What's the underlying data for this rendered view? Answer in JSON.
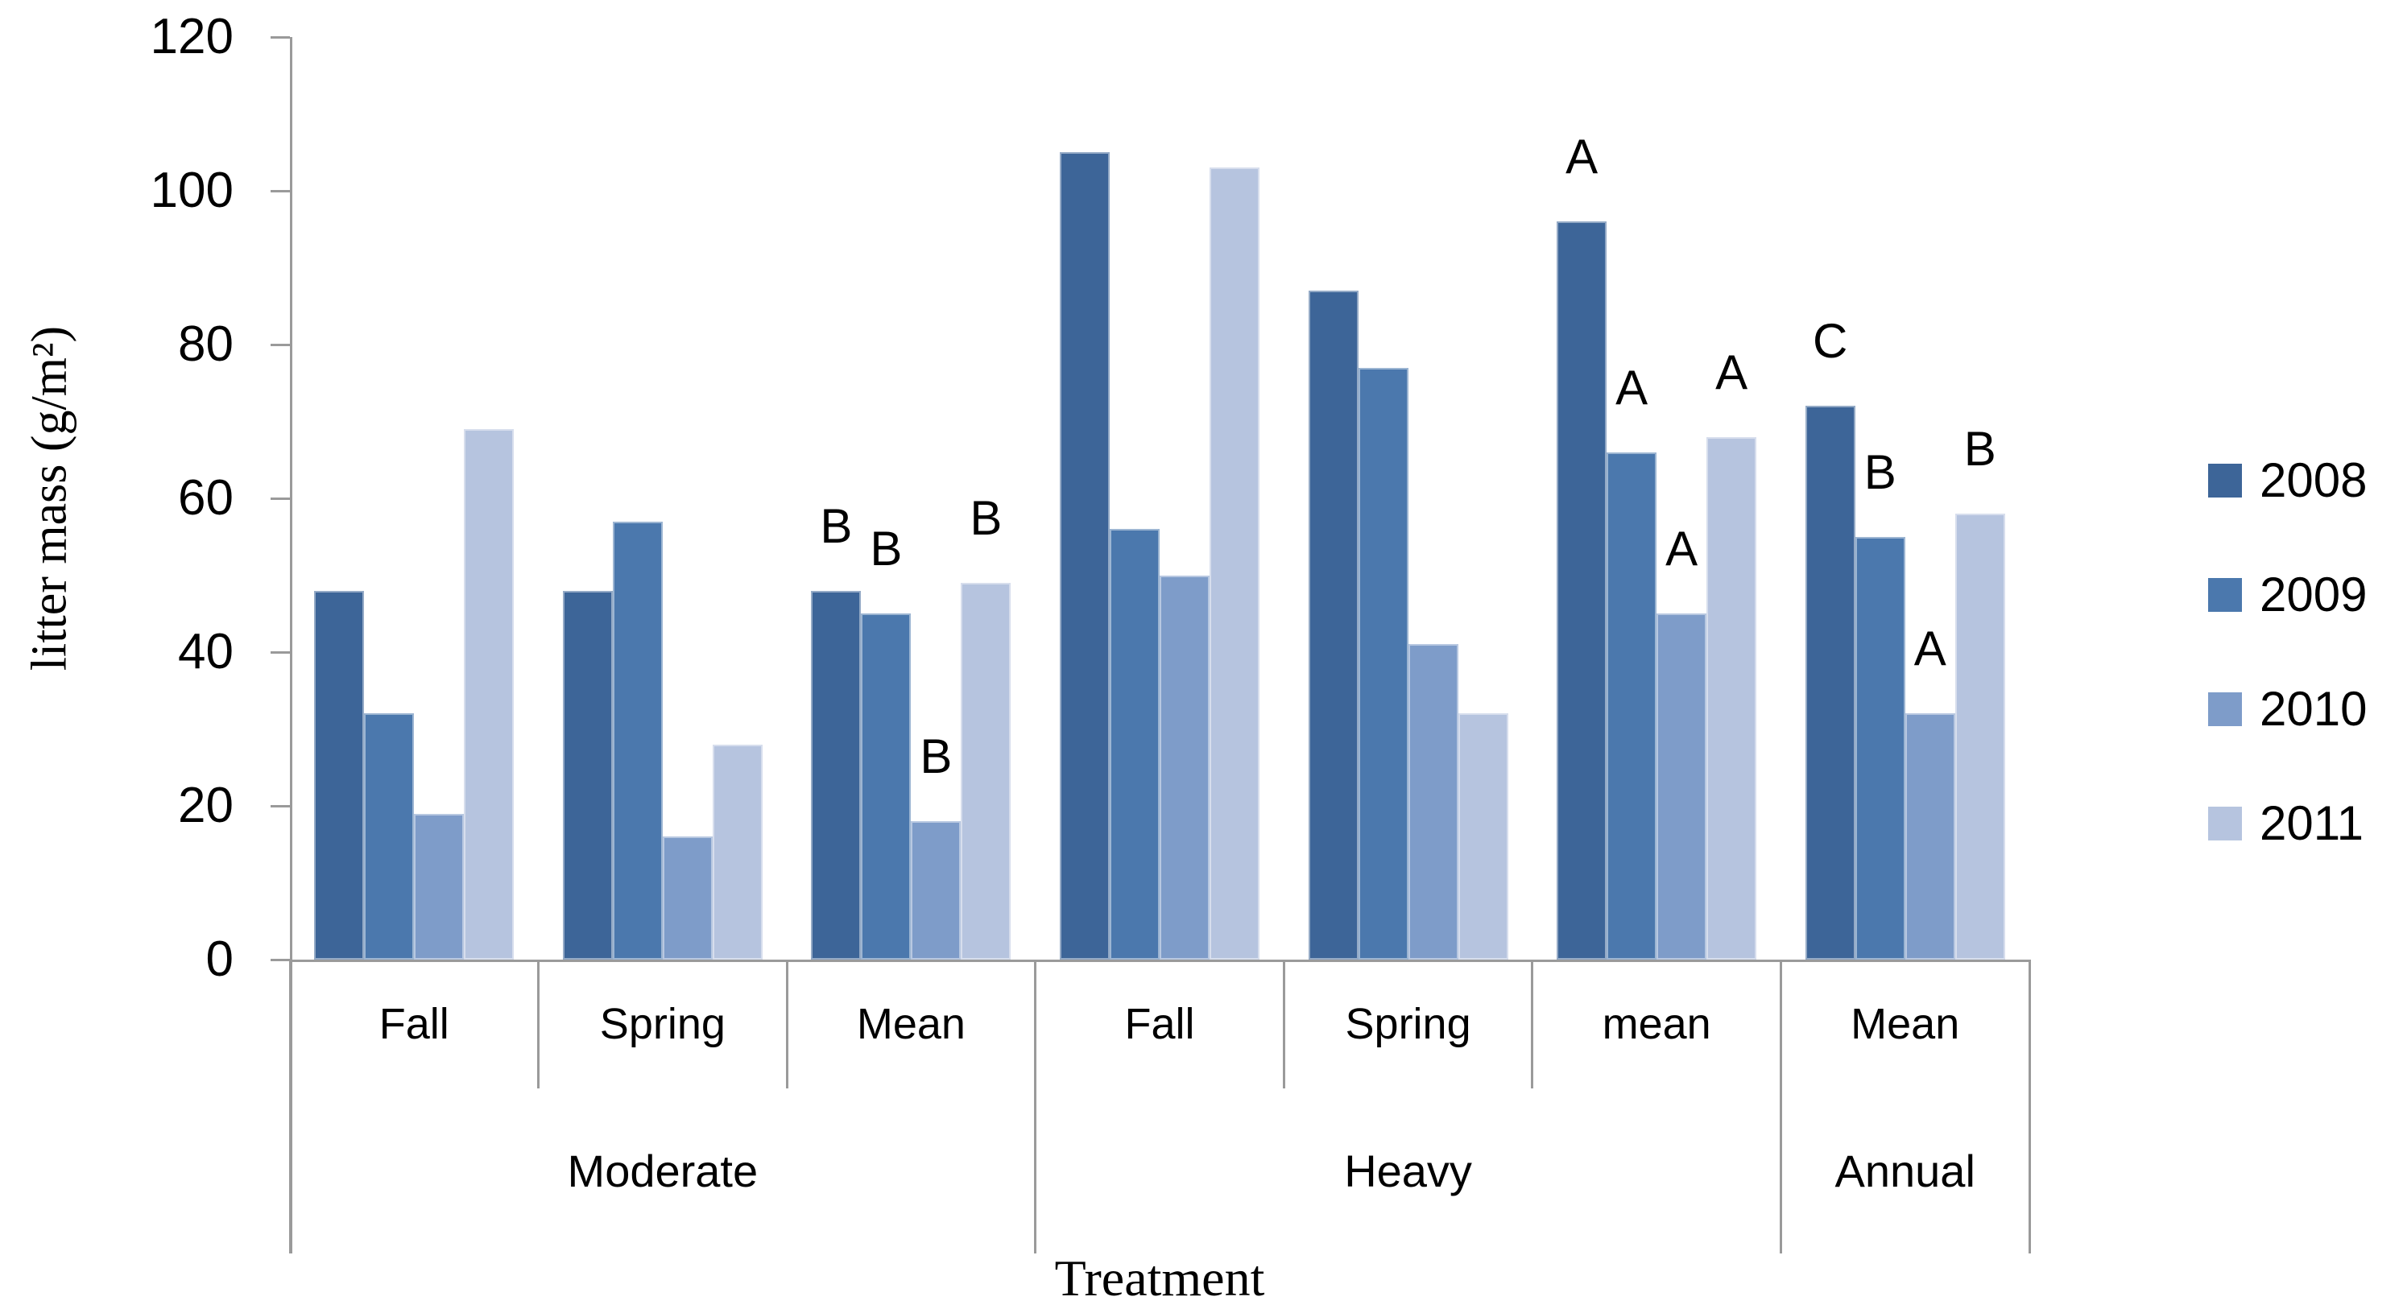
{
  "chart_data": {
    "type": "bar",
    "title": "",
    "ylabel": "litter mass (g/m²)",
    "xlabel": "Treatment",
    "ylim": [
      0,
      120
    ],
    "yticks": [
      0,
      20,
      40,
      60,
      80,
      100,
      120
    ],
    "grid": false,
    "legend_position": "right",
    "categories": [
      "Fall",
      "Spring",
      "Mean",
      "Fall",
      "Spring",
      "mean",
      "Mean"
    ],
    "category_groups": [
      {
        "label": "Moderate",
        "span": 3
      },
      {
        "label": "Heavy",
        "span": 3
      },
      {
        "label": "Annual",
        "span": 1
      }
    ],
    "series": [
      {
        "name": "2008",
        "color": "#3d6598",
        "values": [
          48,
          48,
          48,
          105,
          87,
          96,
          72
        ]
      },
      {
        "name": "2009",
        "color": "#4b78ad",
        "values": [
          32,
          57,
          45,
          56,
          77,
          66,
          55
        ]
      },
      {
        "name": "2010",
        "color": "#7e9cc9",
        "values": [
          19,
          16,
          18,
          50,
          41,
          45,
          32
        ]
      },
      {
        "name": "2011",
        "color": "#b6c4df",
        "values": [
          69,
          28,
          49,
          103,
          32,
          68,
          58
        ]
      }
    ],
    "annotations": {
      "2": [
        "B",
        "B",
        "B",
        "B"
      ],
      "5": [
        "A",
        "A",
        "A",
        "A"
      ],
      "6": [
        "C",
        "B",
        "A",
        "B"
      ]
    }
  },
  "colors": {
    "axis": "#9a9a9a",
    "text": "#000000",
    "background": "#ffffff"
  }
}
